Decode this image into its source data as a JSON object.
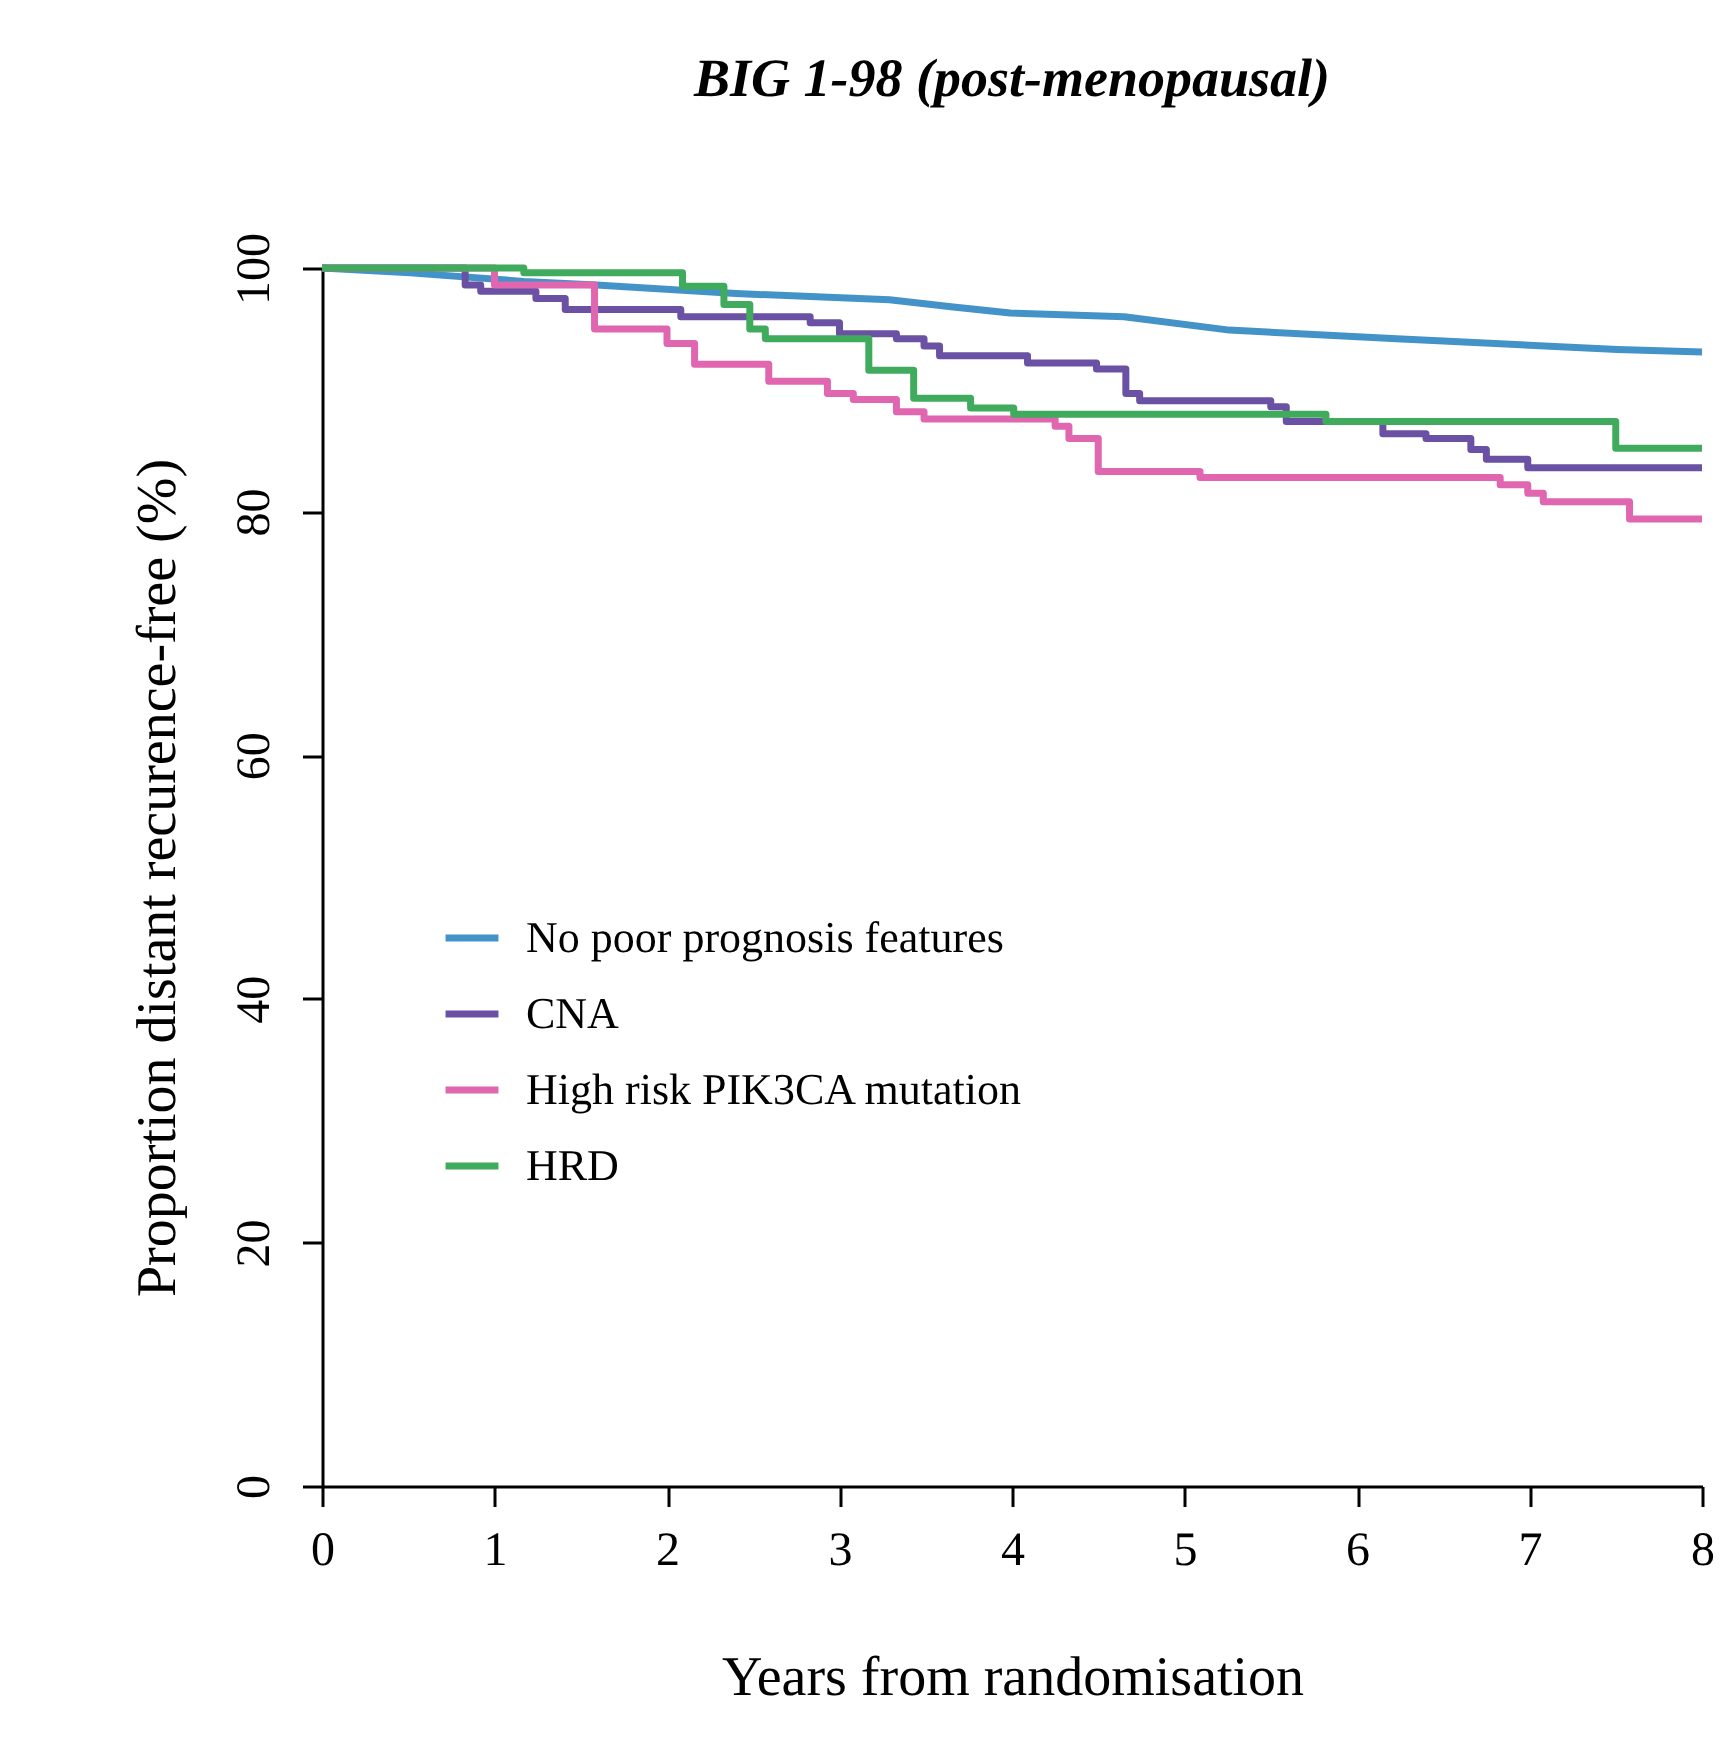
{
  "chart_data": {
    "type": "step",
    "title": "BIG 1-98 (post-menopausal)",
    "xlabel": "Years from randomisation",
    "ylabel": "Proportion distant recurence-free (%)",
    "xlim": [
      0,
      8
    ],
    "xticks": [
      0,
      1,
      2,
      3,
      4,
      5,
      6,
      7,
      8
    ],
    "ylim": [
      0,
      100
    ],
    "yticks": [
      0,
      20,
      40,
      60,
      80,
      100
    ],
    "grid": false,
    "legend": "left",
    "series": [
      {
        "name": "No poor prognosis features",
        "type": "line",
        "color": "#4393c9",
        "x": [
          0,
          0.51,
          1.17,
          1.59,
          2.4,
          3.29,
          3.66,
          3.99,
          4.65,
          5.26,
          6.23,
          7.51,
          8
        ],
        "values": [
          100,
          99.6,
          98.9,
          98.6,
          97.9,
          97.4,
          96.8,
          96.3,
          96.0,
          94.9,
          94.2,
          93.3,
          93.1
        ]
      },
      {
        "name": "CNA",
        "color": "#6a51a3",
        "x": [
          0,
          0.83,
          0.92,
          1.24,
          1.41,
          2.08,
          2.83,
          3.0,
          3.33,
          3.49,
          3.58,
          4.09,
          4.49,
          4.66,
          4.74,
          5.5,
          5.59,
          6.15,
          6.4,
          6.66,
          6.75,
          6.99,
          8
        ],
        "values": [
          100,
          98.6,
          98.1,
          97.5,
          96.6,
          96.0,
          95.5,
          94.6,
          94.2,
          93.6,
          92.8,
          92.2,
          91.7,
          89.7,
          89.1,
          88.6,
          87.4,
          86.4,
          86.0,
          85.1,
          84.3,
          83.6,
          83.6
        ]
      },
      {
        "name": "High risk PIK3CA mutation",
        "color": "#e066b0",
        "x": [
          0,
          1.0,
          1.58,
          2.0,
          2.16,
          2.59,
          2.93,
          3.08,
          3.33,
          3.49,
          4.25,
          4.33,
          4.5,
          5.09,
          6.83,
          6.99,
          7.08,
          7.58,
          8
        ],
        "values": [
          100,
          98.6,
          95.0,
          93.8,
          92.1,
          90.7,
          89.7,
          89.2,
          88.2,
          87.6,
          87.0,
          86.0,
          83.3,
          82.8,
          82.2,
          81.5,
          80.8,
          79.4,
          79.4
        ]
      },
      {
        "name": "HRD",
        "color": "#41ab5d",
        "x": [
          0,
          1.17,
          2.09,
          2.33,
          2.48,
          2.57,
          3.17,
          3.43,
          3.76,
          4.01,
          5.82,
          7.5,
          8
        ],
        "values": [
          100,
          99.6,
          98.5,
          97.0,
          95.0,
          94.2,
          91.6,
          89.3,
          88.5,
          88.0,
          87.4,
          85.2,
          85.2
        ]
      }
    ]
  }
}
